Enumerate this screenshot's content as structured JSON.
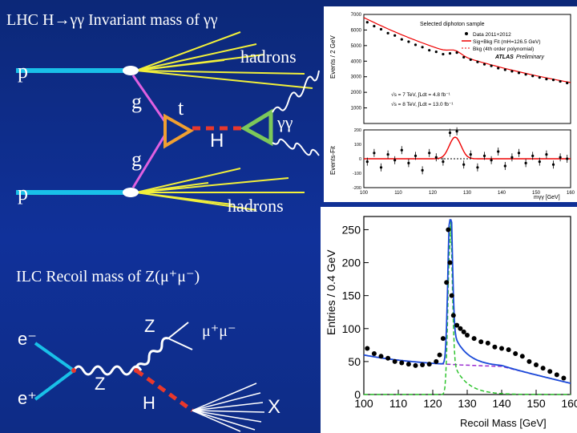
{
  "lhc": {
    "title": "LHC   H→γγ   Invariant mass of γγ",
    "p_top": "p",
    "p_bottom": "p",
    "hadrons_top": "hadrons",
    "hadrons_bottom": "hadrons",
    "g_top": "g",
    "g_bottom": "g",
    "t": "t",
    "h": "H",
    "gammagamma": "γγ"
  },
  "ilc": {
    "title": "ILC   Recoil mass of Z(μ⁺μ⁻)",
    "e_minus": "e⁻",
    "e_plus": "e⁺",
    "z_left": "Z",
    "z_upper": "Z",
    "h": "H",
    "mumu": "μ⁺μ⁻",
    "x": "X"
  },
  "atlas_plot": {
    "ylabel_top": "Events / 2 GeV",
    "ylabel_bottom": "Events-Fit",
    "legend_title": "Selected diphoton sample",
    "legend_data": "Data 2011+2012",
    "legend_fit": "Sig+Bkg Fit (mH=126.5 GeV)",
    "legend_bkg": "Bkg (4th order polynomial)",
    "atlas": "ATLAS",
    "preliminary": "Preliminary",
    "lumi_7": "√s = 7 TeV, ∫Ldt = 4.8 fb⁻¹",
    "lumi_8": "√s = 8 TeV, ∫Ldt = 13.0 fb⁻¹",
    "xlabel": "mγγ [GeV]"
  },
  "chart_data": [
    {
      "type": "scatter",
      "title": "Selected diphoton sample",
      "xlabel": "mγγ [GeV]",
      "ylabel": "Events / 2 GeV",
      "xlim": [
        100,
        160
      ],
      "ylim": [
        0,
        7000
      ],
      "x_ticks": [
        "100",
        "110",
        "120",
        "130",
        "140",
        "150",
        "160"
      ],
      "y_ticks": [
        "1000",
        "2000",
        "3000",
        "4000",
        "5000",
        "6000",
        "7000"
      ],
      "x": [
        101,
        103,
        105,
        107,
        109,
        111,
        113,
        115,
        117,
        119,
        121,
        123,
        125,
        127,
        129,
        131,
        133,
        135,
        137,
        139,
        141,
        143,
        145,
        147,
        149,
        151,
        153,
        155,
        157,
        159
      ],
      "values": [
        6500,
        6250,
        6050,
        5800,
        5650,
        5400,
        5250,
        5050,
        4900,
        4700,
        4600,
        4450,
        4500,
        4550,
        4250,
        4100,
        3950,
        3800,
        3700,
        3550,
        3450,
        3350,
        3250,
        3150,
        3050,
        2950,
        2850,
        2800,
        2700,
        2600
      ]
    },
    {
      "type": "scatter",
      "title": "",
      "xlabel": "",
      "ylabel": "Events-Fit",
      "xlim": [
        100,
        160
      ],
      "ylim": [
        -200,
        200
      ],
      "y_ticks": [
        "-200",
        "-100",
        "0",
        "100",
        "200"
      ],
      "x": [
        101,
        103,
        105,
        107,
        109,
        111,
        113,
        115,
        117,
        119,
        121,
        123,
        125,
        127,
        129,
        131,
        133,
        135,
        137,
        139,
        141,
        143,
        145,
        147,
        149,
        151,
        153,
        155,
        157,
        159
      ],
      "values": [
        -20,
        40,
        -60,
        30,
        -10,
        60,
        -30,
        20,
        -80,
        40,
        10,
        -20,
        180,
        190,
        -40,
        30,
        -60,
        20,
        -10,
        50,
        -50,
        10,
        40,
        -30,
        20,
        -20,
        30,
        -40,
        10,
        0
      ],
      "fit_peak": {
        "center": 126.5,
        "height": 150
      }
    },
    {
      "type": "scatter",
      "title": "",
      "xlabel": "Recoil Mass [GeV]",
      "ylabel": "Entries / 0.4 GeV",
      "xlim": [
        100,
        160
      ],
      "ylim": [
        0,
        270
      ],
      "x_ticks": [
        "100",
        "110",
        "120",
        "130",
        "140",
        "150",
        "160"
      ],
      "y_ticks": [
        "0",
        "50",
        "100",
        "150",
        "200",
        "250"
      ],
      "x": [
        101,
        103,
        105,
        107,
        109,
        111,
        113,
        115,
        117,
        119,
        121,
        122,
        123,
        124,
        124.5,
        125,
        125.5,
        126,
        127,
        128,
        129,
        130,
        132,
        134,
        136,
        138,
        140,
        142,
        144,
        146,
        148,
        150,
        152,
        154,
        156,
        158
      ],
      "values": [
        70,
        62,
        58,
        55,
        50,
        48,
        46,
        44,
        45,
        46,
        50,
        60,
        85,
        170,
        250,
        200,
        150,
        120,
        105,
        100,
        95,
        90,
        85,
        80,
        78,
        72,
        70,
        68,
        62,
        58,
        50,
        45,
        40,
        35,
        30,
        25
      ],
      "fit_peak": {
        "center": 125,
        "height": 230
      },
      "background_level": 40
    }
  ]
}
